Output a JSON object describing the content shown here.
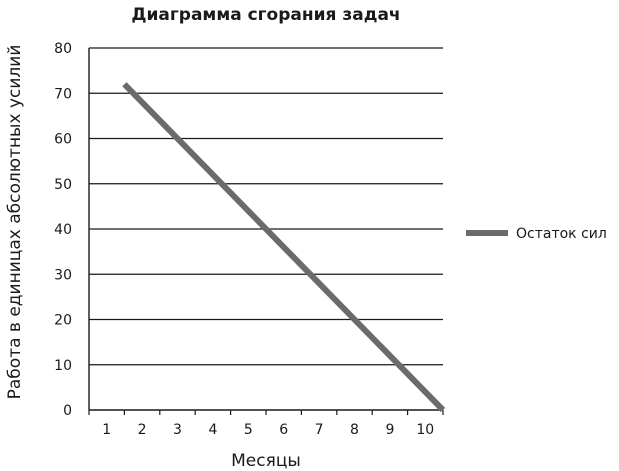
{
  "chart_data": {
    "type": "line",
    "title": "Диаграмма сгорания задач",
    "xlabel": "Месяцы",
    "ylabel": "Работа в единицах абсолютных усилий",
    "x": [
      1,
      10
    ],
    "series": [
      {
        "name": "Остаток сил",
        "values": [
          72,
          0
        ],
        "color": "#6b6b6b"
      }
    ],
    "xlim": [
      0,
      10
    ],
    "ylim": [
      0,
      80
    ],
    "x_ticks": [
      1,
      2,
      3,
      4,
      5,
      6,
      7,
      8,
      9,
      10
    ],
    "y_ticks": [
      0,
      10,
      20,
      30,
      40,
      50,
      60,
      70,
      80
    ],
    "grid": "horizontal",
    "legend_position": "right"
  }
}
